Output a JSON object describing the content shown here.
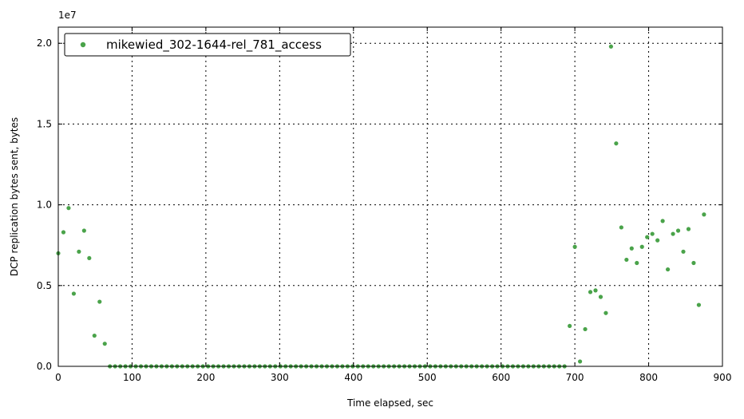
{
  "chart_data": {
    "type": "scatter",
    "title": "",
    "xlabel": "Time elapsed, sec",
    "ylabel": "DCP replication bytes sent, bytes",
    "y_offset_label": "1e7",
    "xlim": [
      0,
      900
    ],
    "ylim": [
      0,
      21000000
    ],
    "x_ticks": [
      0,
      100,
      200,
      300,
      400,
      500,
      600,
      700,
      800,
      900
    ],
    "x_tick_labels": [
      "0",
      "100",
      "200",
      "300",
      "400",
      "500",
      "600",
      "700",
      "800",
      "900"
    ],
    "y_ticks": [
      0,
      5000000,
      10000000,
      15000000,
      20000000
    ],
    "y_tick_labels": [
      "0.0",
      "0.5",
      "1.0",
      "1.5",
      "2.0"
    ],
    "grid": true,
    "legend_position": "top-left",
    "series": [
      {
        "name": "mikewied_302-1644-rel_781_access",
        "color": "#4aa34a",
        "x": [
          0,
          7,
          14,
          21,
          28,
          35,
          42,
          49,
          56,
          63,
          70,
          77,
          84,
          91,
          98,
          105,
          112,
          119,
          126,
          133,
          140,
          147,
          154,
          161,
          168,
          175,
          182,
          189,
          196,
          203,
          210,
          217,
          224,
          231,
          238,
          245,
          252,
          259,
          266,
          273,
          280,
          287,
          294,
          301,
          308,
          315,
          322,
          329,
          336,
          343,
          350,
          357,
          364,
          371,
          378,
          385,
          392,
          399,
          406,
          413,
          420,
          427,
          434,
          441,
          448,
          455,
          462,
          469,
          476,
          483,
          490,
          497,
          504,
          511,
          518,
          525,
          532,
          539,
          546,
          553,
          560,
          567,
          574,
          581,
          588,
          595,
          602,
          609,
          616,
          623,
          630,
          637,
          644,
          651,
          658,
          665,
          672,
          679,
          686,
          693,
          700,
          707,
          714,
          721,
          728,
          735,
          742,
          749,
          756,
          763,
          770,
          777,
          784,
          791,
          798,
          805,
          812,
          819,
          826,
          833,
          840,
          847,
          854,
          861,
          868,
          875
        ],
        "y": [
          7000000,
          8300000,
          9800000,
          4500000,
          7100000,
          8400000,
          6700000,
          1900000,
          4000000,
          1400000,
          0,
          0,
          0,
          0,
          0,
          0,
          0,
          0,
          0,
          0,
          0,
          0,
          0,
          0,
          0,
          0,
          0,
          0,
          0,
          0,
          0,
          0,
          0,
          0,
          0,
          0,
          0,
          0,
          0,
          0,
          0,
          0,
          0,
          0,
          0,
          0,
          0,
          0,
          0,
          0,
          0,
          0,
          0,
          0,
          0,
          0,
          0,
          0,
          0,
          0,
          0,
          0,
          0,
          0,
          0,
          0,
          0,
          0,
          0,
          0,
          0,
          0,
          0,
          0,
          0,
          0,
          0,
          0,
          0,
          0,
          0,
          0,
          0,
          0,
          0,
          0,
          0,
          0,
          0,
          0,
          0,
          0,
          0,
          0,
          0,
          0,
          0,
          0,
          0,
          2500000,
          7400000,
          300000,
          2300000,
          4600000,
          4700000,
          4300000,
          3300000,
          19800000,
          13800000,
          8600000,
          6600000,
          7300000,
          6400000,
          7400000,
          8000000,
          8200000,
          7800000,
          9000000,
          6000000,
          8200000,
          8400000,
          7100000,
          8500000,
          6400000,
          3800000,
          9400000
        ]
      }
    ]
  }
}
